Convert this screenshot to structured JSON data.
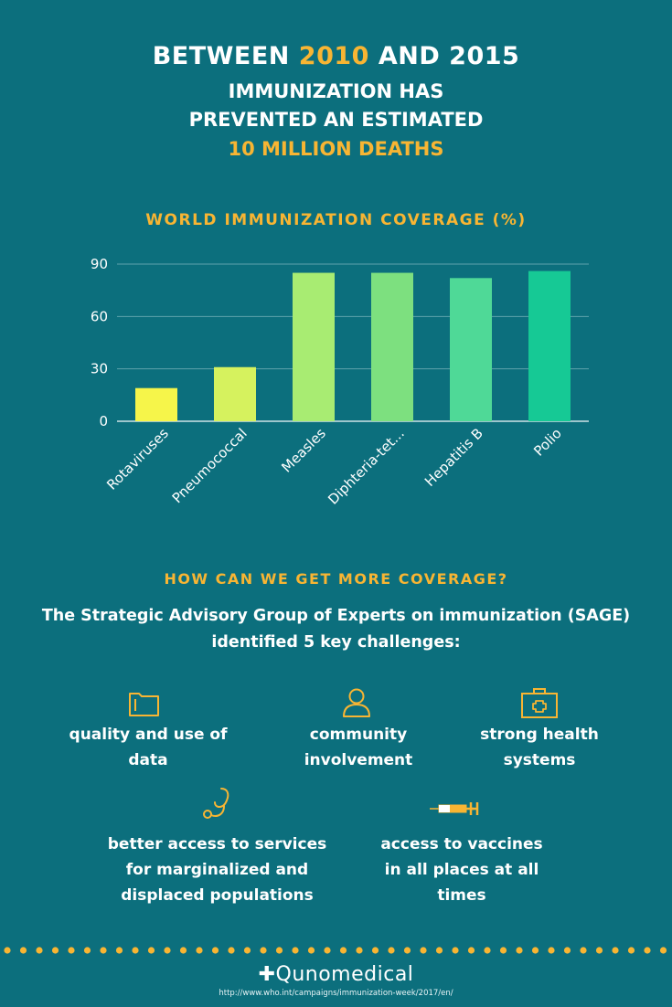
{
  "header": {
    "line1_part1": "BETWEEN ",
    "line1_year": "2010",
    "line1_part2": " AND 2015",
    "line2": "IMMUNIZATION HAS",
    "line3": "PREVENTED AN ESTIMATED",
    "line4": "10 MILLION DEATHS"
  },
  "colors": {
    "background": "#0c6f7d",
    "accent": "#f8b533",
    "bars": [
      "#f6f54a",
      "#d6f25e",
      "#a8ec72",
      "#7de07f",
      "#4fd997",
      "#16c995"
    ]
  },
  "chart_data": {
    "type": "bar",
    "title": "WORLD IMMUNIZATION COVERAGE (%)",
    "categories": [
      "Rotaviruses",
      "Pneumococcal",
      "Measles",
      "Diphteria-tet...",
      "Hepatitis B",
      "Polio"
    ],
    "values": [
      19,
      31,
      85,
      85,
      82,
      86
    ],
    "yticks": [
      "0",
      "30",
      "60",
      "90"
    ],
    "ylim": [
      0,
      90
    ],
    "grid": true,
    "legend": "none"
  },
  "section": {
    "title": "HOW CAN WE GET MORE COVERAGE?",
    "intro_line1": "The Strategic Advisory Group of Experts on immunization (SAGE)",
    "intro_line2": "identified 5 key challenges:"
  },
  "challenges": [
    {
      "icon": "folder-icon",
      "line1": "quality and use of",
      "line2": "data"
    },
    {
      "icon": "person-icon",
      "line1": "community",
      "line2": "involvement"
    },
    {
      "icon": "first-aid-kit-icon",
      "line1": "strong health",
      "line2": "systems"
    },
    {
      "icon": "stethoscope-icon",
      "line1": "better access to services",
      "line2": "for marginalized and",
      "line3": "displaced populations"
    },
    {
      "icon": "syringe-icon",
      "line1": "access to vaccines",
      "line2": "in all places at all",
      "line3": "times"
    }
  ],
  "footer": {
    "logo": "Qunomedical",
    "source": "http://www.who.int/campaigns/immunization-week/2017/en/"
  }
}
